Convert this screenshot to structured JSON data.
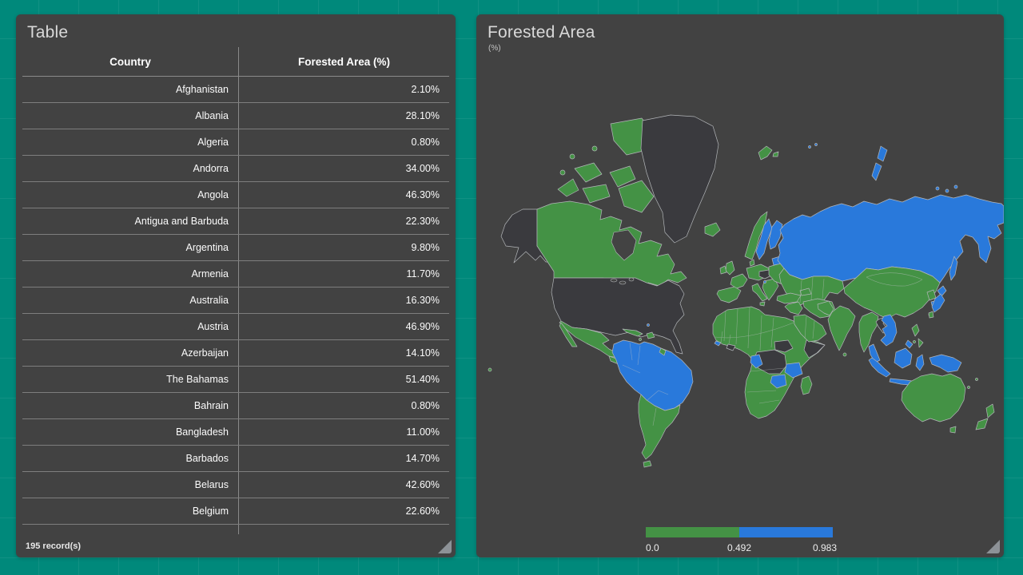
{
  "table_panel": {
    "title": "Table",
    "columns": [
      "Country",
      "Forested Area (%)"
    ],
    "footer": "195 record(s)"
  },
  "map_panel": {
    "title": "Forested Area",
    "subtitle": "(%)",
    "legend_ticks": [
      "0.0",
      "0.492",
      "0.983"
    ]
  },
  "palette": {
    "low": "#449245",
    "high": "#2979db",
    "nodata": "#3a3a3e",
    "ocean": "#434343",
    "panel": "#424242",
    "background": "#00897b"
  },
  "chart_data": [
    {
      "type": "table",
      "title": "Table",
      "columns": [
        "Country",
        "Forested Area (%)"
      ],
      "rows": [
        [
          "Afghanistan",
          "2.10%"
        ],
        [
          "Albania",
          "28.10%"
        ],
        [
          "Algeria",
          "0.80%"
        ],
        [
          "Andorra",
          "34.00%"
        ],
        [
          "Angola",
          "46.30%"
        ],
        [
          "Antigua and Barbuda",
          "22.30%"
        ],
        [
          "Argentina",
          "9.80%"
        ],
        [
          "Armenia",
          "11.70%"
        ],
        [
          "Australia",
          "16.30%"
        ],
        [
          "Austria",
          "46.90%"
        ],
        [
          "Azerbaijan",
          "14.10%"
        ],
        [
          "The Bahamas",
          "51.40%"
        ],
        [
          "Bahrain",
          "0.80%"
        ],
        [
          "Bangladesh",
          "11.00%"
        ],
        [
          "Barbados",
          "14.70%"
        ],
        [
          "Belarus",
          "42.60%"
        ],
        [
          "Belgium",
          "22.60%"
        ]
      ],
      "footer": "195 record(s)"
    },
    {
      "type": "heatmap",
      "title": "Forested Area",
      "subtitle": "(%)",
      "legend": {
        "breaks": [
          0.0,
          0.492,
          0.983
        ],
        "colors": [
          "#449245",
          "#2979db"
        ],
        "position": "bottom"
      },
      "palette": {
        "low": "#449245",
        "high": "#2979db",
        "nodata": "#3a3a3e"
      },
      "regions": {
        "alaska": "nodata",
        "usa": "nodata",
        "greenland": "nodata",
        "drc": "nodata",
        "south-sudan": "nodata",
        "somalia": "nodata",
        "liberia": "nodata",
        "laos": "nodata",
        "czech-hungary": "nodata",
        "canada": "low",
        "arctic-1": "low",
        "arctic-2": "low",
        "arctic-3": "low",
        "arctic-4": "low",
        "arctic-5": "low",
        "arctic-6": "low",
        "arctic-7": "low",
        "arctic-8": "low",
        "arctic-9": "low",
        "iceland": "low",
        "svalbard": "low",
        "svalbard-2": "low",
        "mexico": "low",
        "baja": "low",
        "central-america": "low",
        "cuba": "low",
        "hispaniola": "low",
        "jamaica": "low",
        "guyana": "low",
        "south-america-south": "low",
        "tierra-del-fuego": "low",
        "africa": "low",
        "madagascar": "low",
        "iberia": "low",
        "france": "low",
        "uk": "low",
        "ireland": "low",
        "central-europe": "low",
        "italy": "low",
        "sicily": "low",
        "balkans": "low",
        "east-europe": "low",
        "norway": "low",
        "denmark": "low",
        "turkey": "low",
        "caucasus": "low",
        "kazakhstan": "low",
        "china": "low",
        "india": "low",
        "sri-lanka": "low",
        "pakistan-afghanistan": "low",
        "iran": "low",
        "arabia": "low",
        "iraq-syria": "low",
        "myanmar-thailand": "low",
        "north-korea": "low",
        "philippines-1": "low",
        "philippines-2": "low",
        "philippines-3": "low",
        "taiwan": "low",
        "australia": "low",
        "tasmania": "low",
        "nz-north": "low",
        "nz-south": "low",
        "fiji": "low",
        "new-caledonia": "low",
        "fiji-west": "low",
        "russia": "high",
        "sweden": "high",
        "finland": "high",
        "baltics": "high",
        "slovenia": "high",
        "novaya-zemlya-1": "high",
        "novaya-zemlya-2": "high",
        "franz-josef-1": "high",
        "franz-josef-2": "high",
        "new-siberian-1": "high",
        "new-siberian-2": "high",
        "new-siberian-3": "high",
        "sakhalin": "high",
        "japan-hokkaido": "high",
        "japan-honshu": "high",
        "japan-kyushu": "high",
        "south-korea": "high",
        "south-america-north": "high",
        "gabon": "high",
        "zambia": "high",
        "tanzania": "high",
        "guinea-bissau": "high",
        "bahamas": "high",
        "vietnam-cambodia": "high",
        "malay-peninsula": "high",
        "sumatra": "high",
        "borneo": "high",
        "java": "high",
        "sulawesi": "high",
        "palawan": "high",
        "new-guinea": "high"
      }
    }
  ]
}
